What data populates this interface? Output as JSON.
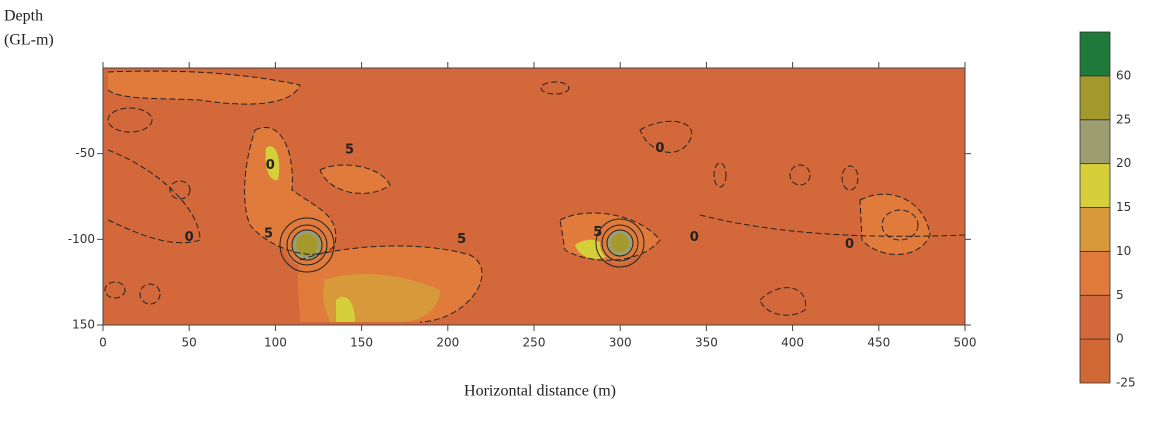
{
  "chart_data": {
    "type": "contour",
    "ylabel": [
      "Depth",
      "(GL-m)"
    ],
    "xlabel": "Horizontal distance (m)",
    "xlim": [
      0,
      500
    ],
    "xticks": [
      0,
      50,
      100,
      150,
      200,
      250,
      300,
      350,
      400,
      450,
      500
    ],
    "ylim": [
      -150,
      0
    ],
    "yticks": [
      -50,
      -100,
      {
        "value": -150,
        "label": "150"
      }
    ],
    "levels": [
      -25,
      0,
      5,
      10,
      15,
      20,
      25,
      60
    ],
    "level_colors": [
      "#cf6834",
      "#d3693a",
      "#e07b3c",
      "#d8993a",
      "#d5cf3a",
      "#9d9d72",
      "#a3992c",
      "#1e7a3a"
    ],
    "annotations": [
      {
        "text": "0",
        "x": 97,
        "y": -57
      },
      {
        "text": "5",
        "x": 143,
        "y": -48
      },
      {
        "text": "0",
        "x": 50,
        "y": -99
      },
      {
        "text": "5",
        "x": 96,
        "y": -97
      },
      {
        "text": "5",
        "x": 208,
        "y": -100
      },
      {
        "text": "0",
        "x": 323,
        "y": -47
      },
      {
        "text": "5",
        "x": 287,
        "y": -96
      },
      {
        "text": "0",
        "x": 343,
        "y": -99
      },
      {
        "text": "0",
        "x": 433,
        "y": -103
      }
    ]
  }
}
